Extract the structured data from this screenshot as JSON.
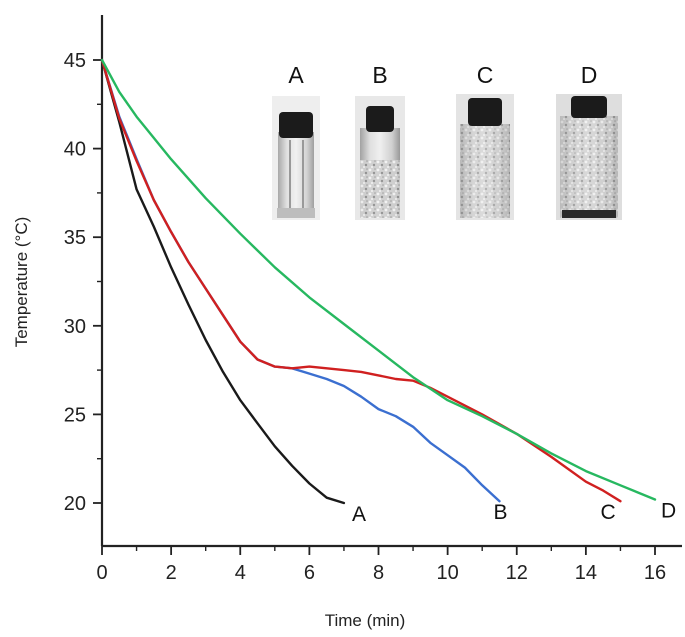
{
  "chart_data": {
    "type": "line",
    "xlabel": "Time (min)",
    "ylabel": "Temperature (°C)",
    "xlim": [
      0,
      17
    ],
    "ylim": [
      17.5,
      46.5
    ],
    "xticks": [
      0,
      2,
      4,
      6,
      8,
      10,
      12,
      14,
      16
    ],
    "yticks": [
      20,
      25,
      30,
      35,
      40,
      45
    ],
    "grid": false,
    "series": [
      {
        "name": "A",
        "color": "#1a1a1a",
        "x": [
          0,
          0.5,
          1,
          1.5,
          2,
          2.5,
          3,
          3.5,
          4,
          4.5,
          5,
          5.5,
          6,
          6.5,
          7
        ],
        "y": [
          45,
          41.5,
          37.7,
          35.6,
          33.3,
          31.2,
          29.2,
          27.4,
          25.8,
          24.5,
          23.2,
          22.1,
          21.1,
          20.3,
          20
        ]
      },
      {
        "name": "B",
        "color": "#3b6fd0",
        "x": [
          0,
          0.5,
          1,
          1.5,
          2,
          2.5,
          3,
          3.5,
          4,
          4.5,
          5,
          5.5,
          6,
          6.5,
          7,
          7.5,
          8,
          8.5,
          9,
          9.5,
          10,
          10.5,
          11,
          11.5
        ],
        "y": [
          45,
          41.8,
          39.4,
          37.1,
          35.3,
          33.6,
          32.1,
          30.6,
          29.1,
          28.1,
          27.7,
          27.6,
          27.3,
          27.0,
          26.6,
          26.0,
          25.3,
          24.9,
          24.3,
          23.4,
          22.7,
          22.0,
          21.0,
          20.1
        ]
      },
      {
        "name": "C",
        "color": "#d02020",
        "x": [
          0,
          0.5,
          1,
          1.5,
          2,
          2.5,
          3,
          3.5,
          4,
          4.5,
          5,
          5.5,
          6,
          6.5,
          7,
          7.5,
          8,
          8.5,
          9,
          9.5,
          10,
          11,
          12,
          13,
          14,
          14.5,
          15
        ],
        "y": [
          45,
          41.7,
          39.3,
          37.1,
          35.3,
          33.6,
          32.1,
          30.6,
          29.1,
          28.1,
          27.7,
          27.6,
          27.7,
          27.6,
          27.5,
          27.4,
          27.2,
          27.0,
          26.9,
          26.5,
          26.0,
          25.0,
          23.9,
          22.6,
          21.2,
          20.7,
          20.1
        ]
      },
      {
        "name": "D",
        "color": "#27b860",
        "x": [
          0,
          0.5,
          1,
          2,
          3,
          4,
          5,
          6,
          7,
          8,
          9,
          10,
          11,
          12,
          13,
          14,
          15,
          16
        ],
        "y": [
          45,
          43.2,
          41.8,
          39.4,
          37.2,
          35.2,
          33.3,
          31.6,
          30.1,
          28.6,
          27.1,
          25.8,
          24.9,
          23.9,
          22.8,
          21.8,
          21.0,
          20.2
        ]
      }
    ],
    "inset": {
      "labels": [
        "A",
        "B",
        "C",
        "D"
      ]
    }
  }
}
